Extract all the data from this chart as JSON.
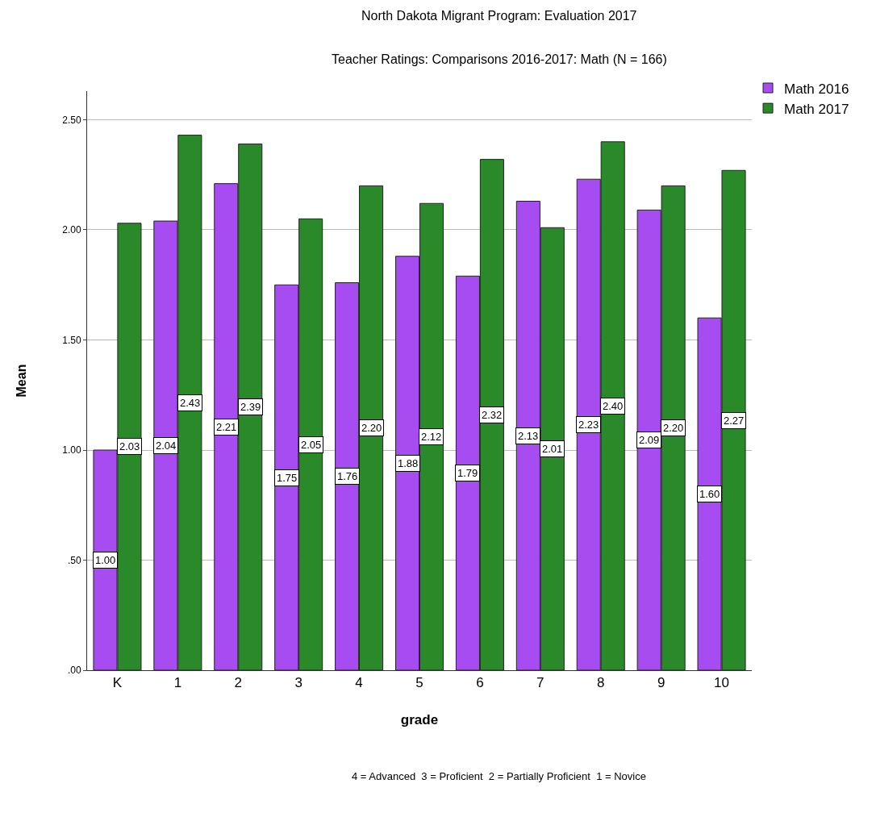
{
  "chart_data": {
    "type": "bar",
    "title": "North Dakota Migrant Program: Evaluation 2017",
    "subtitle": "Teacher Ratings: Comparisons 2016-2017: Math (N = 166)",
    "xlabel": "grade",
    "ylabel": "Mean",
    "categories": [
      "K",
      "1",
      "2",
      "3",
      "4",
      "5",
      "6",
      "7",
      "8",
      "9",
      "10"
    ],
    "series": [
      {
        "name": "Math 2016",
        "color": "#a64cf0",
        "values": [
          1.0,
          2.04,
          2.21,
          1.75,
          1.76,
          1.88,
          1.79,
          2.13,
          2.23,
          2.09,
          1.6
        ],
        "value_labels": [
          "1.00",
          "2.04",
          "2.21",
          "1.75",
          "1.76",
          "1.88",
          "1.79",
          "2.13",
          "2.23",
          "2.09",
          "1.60"
        ]
      },
      {
        "name": "Math 2017",
        "color": "#2a8a2a",
        "values": [
          2.03,
          2.43,
          2.39,
          2.05,
          2.2,
          2.12,
          2.32,
          2.01,
          2.4,
          2.2,
          2.27
        ],
        "value_labels": [
          "2.03",
          "2.43",
          "2.39",
          "2.05",
          "2.20",
          "2.12",
          "2.32",
          "2.01",
          "2.40",
          "2.20",
          "2.27"
        ]
      }
    ],
    "ylim": [
      0,
      2.63
    ],
    "yticks": [
      {
        "value": 0,
        "label": ".00"
      },
      {
        "value": 0.5,
        "label": ".50"
      },
      {
        "value": 1,
        "label": "1.00"
      },
      {
        "value": 1.5,
        "label": "1.50"
      },
      {
        "value": 2,
        "label": "2.00"
      },
      {
        "value": 2.5,
        "label": "2.50"
      }
    ],
    "grid": "y",
    "legend": "top right",
    "annotations": [
      "4 = Advanced  3 = Proficient  2 = Partially Proficient  1 = Novice"
    ]
  }
}
